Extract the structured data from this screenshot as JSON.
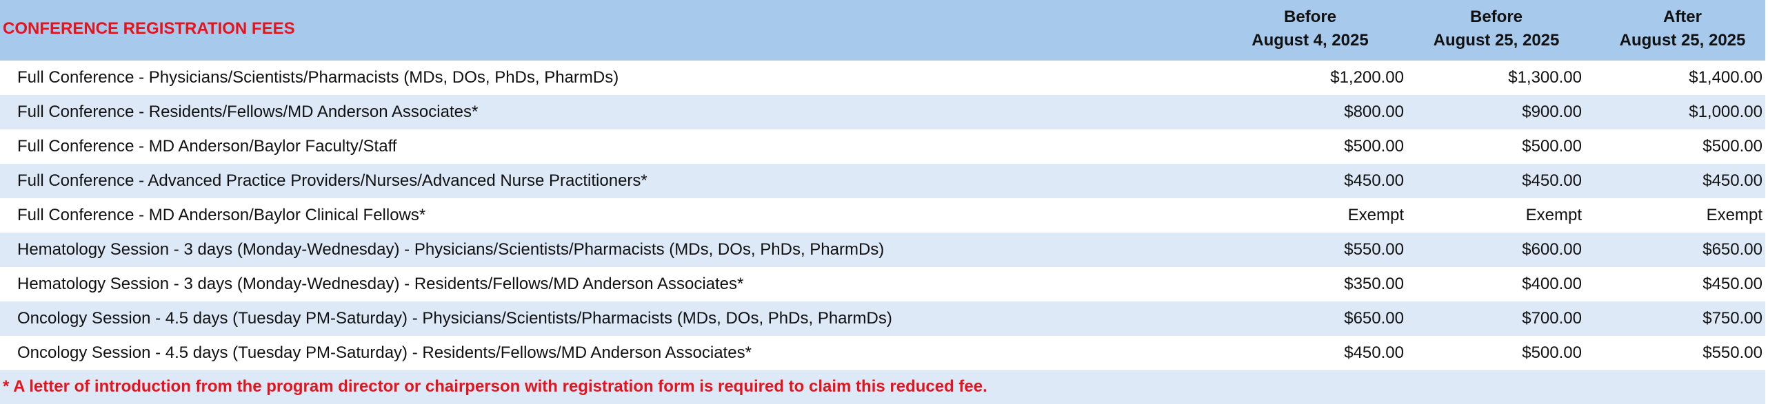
{
  "header": {
    "title": "CONFERENCE REGISTRATION FEES",
    "columns": [
      [
        "Before",
        "August 4, 2025"
      ],
      [
        "Before",
        "August 25, 2025"
      ],
      [
        "After",
        "August 25, 2025"
      ]
    ]
  },
  "table": {
    "rows": [
      [
        "Full Conference - Physicians/Scientists/Pharmacists (MDs, DOs, PhDs, PharmDs)",
        "$1,200.00",
        "$1,300.00",
        "$1,400.00"
      ],
      [
        "Full Conference - Residents/Fellows/MD Anderson Associates*",
        "$800.00",
        "$900.00",
        "$1,000.00"
      ],
      [
        "Full Conference - MD Anderson/Baylor Faculty/Staff",
        "$500.00",
        "$500.00",
        "$500.00"
      ],
      [
        "Full Conference - Advanced Practice Providers/Nurses/Advanced Nurse Practitioners*",
        "$450.00",
        "$450.00",
        "$450.00"
      ],
      [
        "Full Conference - MD Anderson/Baylor Clinical Fellows*",
        "Exempt",
        "Exempt",
        "Exempt"
      ],
      [
        "Hematology Session - 3 days (Monday-Wednesday) - Physicians/Scientists/Pharmacists (MDs, DOs, PhDs, PharmDs)",
        "$550.00",
        "$600.00",
        "$650.00"
      ],
      [
        "Hematology Session - 3 days (Monday-Wednesday) - Residents/Fellows/MD Anderson Associates*",
        "$350.00",
        "$400.00",
        "$450.00"
      ],
      [
        "Oncology Session - 4.5 days (Tuesday PM-Saturday) - Physicians/Scientists/Pharmacists (MDs, DOs, PhDs, PharmDs)",
        "$650.00",
        "$700.00",
        "$750.00"
      ],
      [
        "Oncology Session - 4.5 days (Tuesday PM-Saturday) - Residents/Fellows/MD Anderson Associates*",
        "$450.00",
        "$500.00",
        "$550.00"
      ]
    ]
  },
  "footnote": "*  A letter of introduction from the program director or chairperson with registration form is required to claim this reduced fee."
}
